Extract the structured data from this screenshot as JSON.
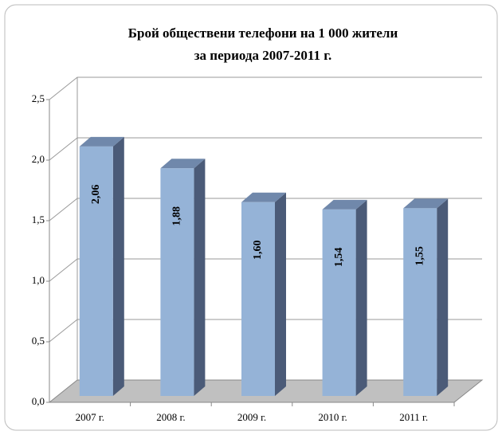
{
  "chart_data": {
    "type": "bar3d",
    "title": [
      "Брой обществени телефони на 1 000 жители",
      "за периода 2007-2011 г."
    ],
    "categories": [
      "2007 г.",
      "2008 г.",
      "2009 г.",
      "2010 г.",
      "2011 г."
    ],
    "values": [
      2.06,
      1.88,
      1.6,
      1.54,
      1.55
    ],
    "value_labels": [
      "2,06",
      "1,88",
      "1,60",
      "1,54",
      "1,55"
    ],
    "color": "#95b3d7",
    "ylim": [
      0,
      2.5
    ],
    "yticks": [
      {
        "value": 0,
        "label": "0,0"
      },
      {
        "value": 0.5,
        "label": "0,5"
      },
      {
        "value": 1,
        "label": "1,0"
      },
      {
        "value": 1.5,
        "label": "1,5"
      },
      {
        "value": 2,
        "label": "2,0"
      },
      {
        "value": 2.5,
        "label": "2,5"
      }
    ],
    "grid": true
  }
}
